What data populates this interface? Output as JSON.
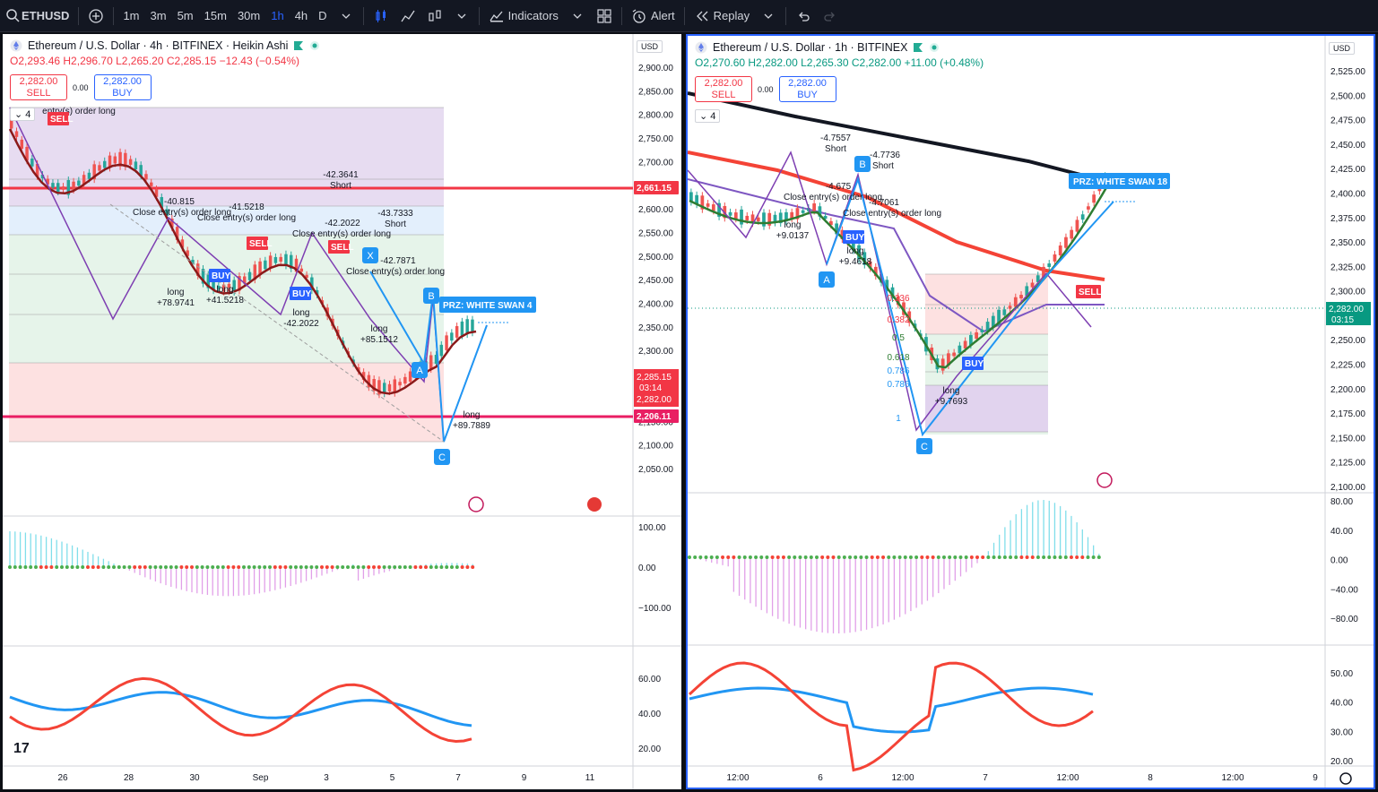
{
  "toolbar": {
    "symbol": "ETHUSD",
    "intervals": [
      "1m",
      "3m",
      "5m",
      "15m",
      "30m",
      "1h",
      "4h",
      "D"
    ],
    "active_interval": "1h",
    "indicators_label": "Indicators",
    "alert_label": "Alert",
    "replay_label": "Replay"
  },
  "left_chart": {
    "title": "Ethereum / U.S. Dollar · 4h · BITFINEX · Heikin Ashi",
    "ohlc": {
      "o": "O2,293.46",
      "h": "H2,296.70",
      "l": "L2,265.20",
      "c": "C2,285.15",
      "chg": "−12.43 (−0.54%)"
    },
    "sell_price": "2,282.00",
    "sell_label": "SELL",
    "buy_price": "2,282.00",
    "buy_label": "BUY",
    "spread": "0.00",
    "currency": "USD",
    "collapse": "4",
    "price_axis": [
      "2,900.00",
      "2,850.00",
      "2,800.00",
      "2,750.00",
      "2,700.00",
      "2,650.00",
      "2,600.00",
      "2,550.00",
      "2,500.00",
      "2,450.00",
      "2,400.00",
      "2,350.00",
      "2,300.00",
      "2,250.00",
      "2,200.00",
      "2,150.00",
      "2,100.00",
      "2,050.00"
    ],
    "price_tags": {
      "red_line": "2,661.15",
      "last": "2,285.15",
      "countdown": "03:14",
      "bid": "2,282.00",
      "pink_line": "2,206.11"
    },
    "osc_axis": [
      "100.00",
      "0.00",
      "−100.00"
    ],
    "rsi_axis": [
      "60.00",
      "40.00",
      "20.00"
    ],
    "time_axis": [
      "26",
      "28",
      "30",
      "Sep",
      "3",
      "5",
      "7",
      "9",
      "11"
    ],
    "prz_label": "PRZ: WHITE SWAN 4",
    "point_labels": [
      "X",
      "A",
      "B",
      "C"
    ],
    "annotations": [
      "-42.3641",
      "Short",
      "-40.815",
      "Close entry(s) order long",
      "-41.5218",
      "Close entry(s) order long",
      "-42.2022",
      "Close entry(s) order long",
      "-43.7333",
      "Short",
      "-42.7871",
      "Close entry(s) order long",
      "long",
      "+78.9741",
      "long",
      "+41.5218",
      "long",
      "-42.2022",
      "long",
      "+85.1512",
      "long",
      "+89.7889",
      "entry(s) order long",
      "BUY",
      "SELL"
    ]
  },
  "right_chart": {
    "title": "Ethereum / U.S. Dollar · 1h · BITFINEX",
    "ohlc": {
      "o": "O2,270.60",
      "h": "H2,282.00",
      "l": "L2,265.30",
      "c": "C2,282.00",
      "chg": "+11.00 (+0.48%)"
    },
    "sell_price": "2,282.00",
    "sell_label": "SELL",
    "buy_price": "2,282.00",
    "buy_label": "BUY",
    "spread": "0.00",
    "currency": "USD",
    "collapse": "4",
    "price_axis": [
      "2,525.00",
      "2,500.00",
      "2,475.00",
      "2,450.00",
      "2,425.00",
      "2,400.00",
      "2,375.00",
      "2,350.00",
      "2,325.00",
      "2,300.00",
      "2,275.00",
      "2,250.00",
      "2,225.00",
      "2,200.00",
      "2,175.00",
      "2,150.00",
      "2,125.00",
      "2,100.00"
    ],
    "price_tags": {
      "last": "2,282.00",
      "countdown": "03:15"
    },
    "osc_axis": [
      "80.00",
      "40.00",
      "0.00",
      "−40.00",
      "−80.00"
    ],
    "rsi_axis": [
      "50.00",
      "40.00",
      "30.00",
      "20.00"
    ],
    "time_axis": [
      "12:00",
      "6",
      "12:00",
      "7",
      "12:00",
      "8",
      "12:00",
      "9"
    ],
    "prz_label": "PRZ: WHITE SWAN 18",
    "point_labels": [
      "A",
      "B",
      "C"
    ],
    "fib_labels": [
      "0.236",
      "0.382",
      "0.5",
      "0.618",
      "0.786",
      "0.786",
      "1"
    ],
    "annotations": [
      "-4.7557",
      "Short",
      "-4.7736",
      "Short",
      "-4.675",
      "Close entry(s) order long",
      "-4.7061",
      "Close entry(s) order long",
      "long",
      "+9.0137",
      "long",
      "+9.4618",
      "long",
      "+9.7693",
      "BUY",
      "SELL"
    ]
  }
}
